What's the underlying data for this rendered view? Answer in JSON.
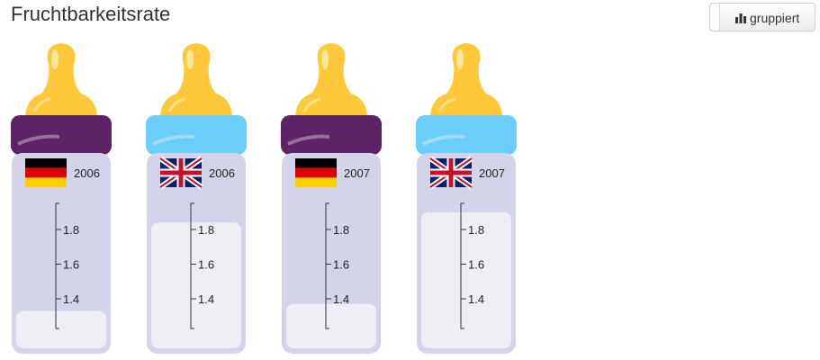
{
  "title": "Fruchtbarkeitsrate",
  "toggle": {
    "label": "gruppiert",
    "icon": "bar-chart-icon"
  },
  "colors": {
    "bottle_body": "#d3d3ea",
    "milk": "#eeeff5",
    "nipple": "#ffc83a",
    "cap_germany": "#5e2266",
    "cap_uk": "#6acdfa",
    "axis": "#333333"
  },
  "chart_data": {
    "type": "bar",
    "title": "Fruchtbarkeitsrate",
    "categories": [
      "2006",
      "2006",
      "2007",
      "2007"
    ],
    "series_country": [
      "Germany",
      "United Kingdom",
      "Germany",
      "United Kingdom"
    ],
    "flags": [
      "de-flag",
      "uk-flag",
      "de-flag",
      "uk-flag"
    ],
    "values": [
      1.33,
      1.84,
      1.37,
      1.9
    ],
    "ticks": [
      "1.8",
      "1.6",
      "1.4"
    ],
    "tick_values": [
      1.8,
      1.6,
      1.4
    ],
    "ylim": [
      1.2,
      1.95
    ],
    "xlabel": "",
    "ylabel": ""
  }
}
